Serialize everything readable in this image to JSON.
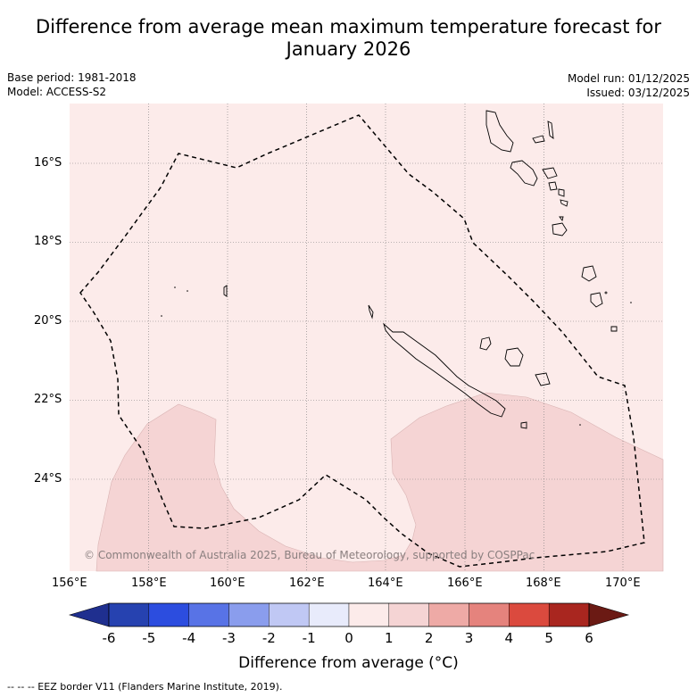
{
  "title": "Difference from average mean maximum temperature forecast for January 2026",
  "base_period": "Base period: 1981-2018",
  "model": "Model: ACCESS-S2",
  "model_run": "Model run: 01/12/2025",
  "issued": "Issued: 03/12/2025",
  "copyright": "© Commonwealth of Australia 2025, Bureau of Meteorology, supported by COSPPac",
  "lat_labels": [
    "16°S",
    "18°S",
    "20°S",
    "22°S",
    "24°S"
  ],
  "lon_labels": [
    "156°E",
    "158°E",
    "160°E",
    "162°E",
    "164°E",
    "166°E",
    "168°E",
    "170°E"
  ],
  "colorbar": {
    "ticks": [
      "-6",
      "-5",
      "-4",
      "-3",
      "-2",
      "-1",
      "0",
      "1",
      "2",
      "3",
      "4",
      "5",
      "6"
    ],
    "colors": [
      "#1f2f8f",
      "#2642b0",
      "#2c4ddf",
      "#5873e6",
      "#8a9ded",
      "#c0c8f4",
      "#e8ebfb",
      "#fcebea",
      "#f5d4d4",
      "#eeaaa6",
      "#e5837d",
      "#db4a3e",
      "#a9261f",
      "#6b1a14"
    ],
    "label": "Difference from average (°C)"
  },
  "map_colors": {
    "background": "#fcebea",
    "warm_region": "#f5d4d4",
    "land_outline": "#000000"
  },
  "legend": "--  --  -- EEZ border V11 (Flanders Marine Institute, 2019)."
}
